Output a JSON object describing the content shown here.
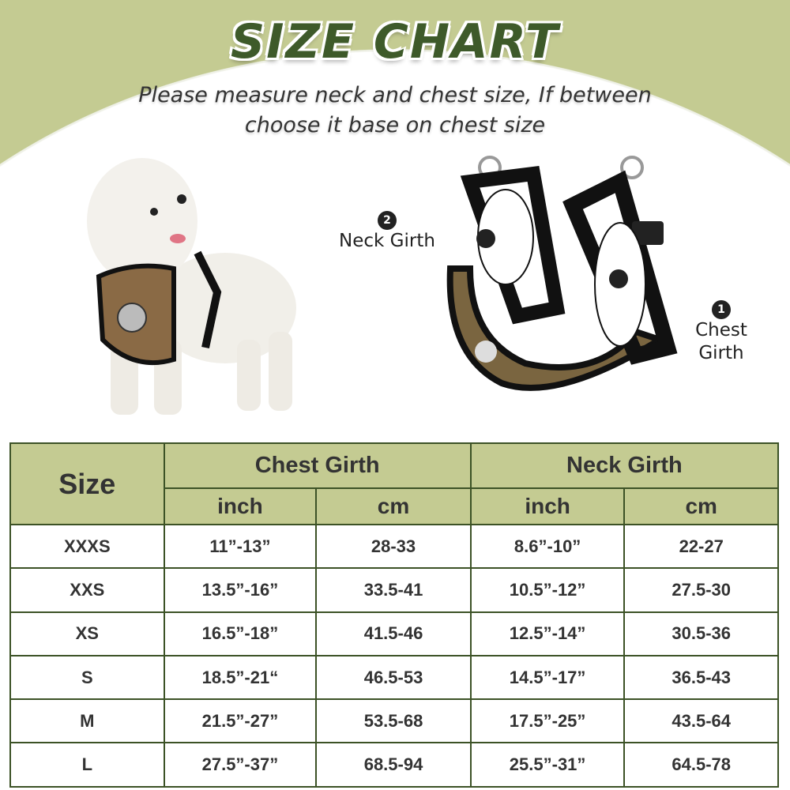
{
  "title": "SIZE CHART",
  "subtitle_line1": "Please measure neck and chest size, If between",
  "subtitle_line2": "choose it base on chest size",
  "labels": {
    "neck_num": "2",
    "neck": "Neck Girth",
    "chest_num": "1",
    "chest_line1": "Chest",
    "chest_line2": "Girth"
  },
  "colors": {
    "accent": "#c4cb92",
    "title": "#3e5a2a",
    "border": "#3c5226"
  },
  "table": {
    "size_header": "Size",
    "chest_header": "Chest Girth",
    "neck_header": "Neck Girth",
    "units": [
      "inch",
      "cm",
      "inch",
      "cm"
    ],
    "rows": [
      [
        "XXXS",
        "11”-13”",
        "28-33",
        "8.6”-10”",
        "22-27"
      ],
      [
        "XXS",
        "13.5”-16”",
        "33.5-41",
        "10.5”-12”",
        "27.5-30"
      ],
      [
        "XS",
        "16.5”-18”",
        "41.5-46",
        "12.5”-14”",
        "30.5-36"
      ],
      [
        "S",
        "18.5”-21“",
        "46.5-53",
        "14.5”-17”",
        "36.5-43"
      ],
      [
        "M",
        "21.5”-27”",
        "53.5-68",
        "17.5”-25”",
        "43.5-64"
      ],
      [
        "L",
        "27.5”-37”",
        "68.5-94",
        "25.5”-31”",
        "64.5-78"
      ]
    ]
  }
}
